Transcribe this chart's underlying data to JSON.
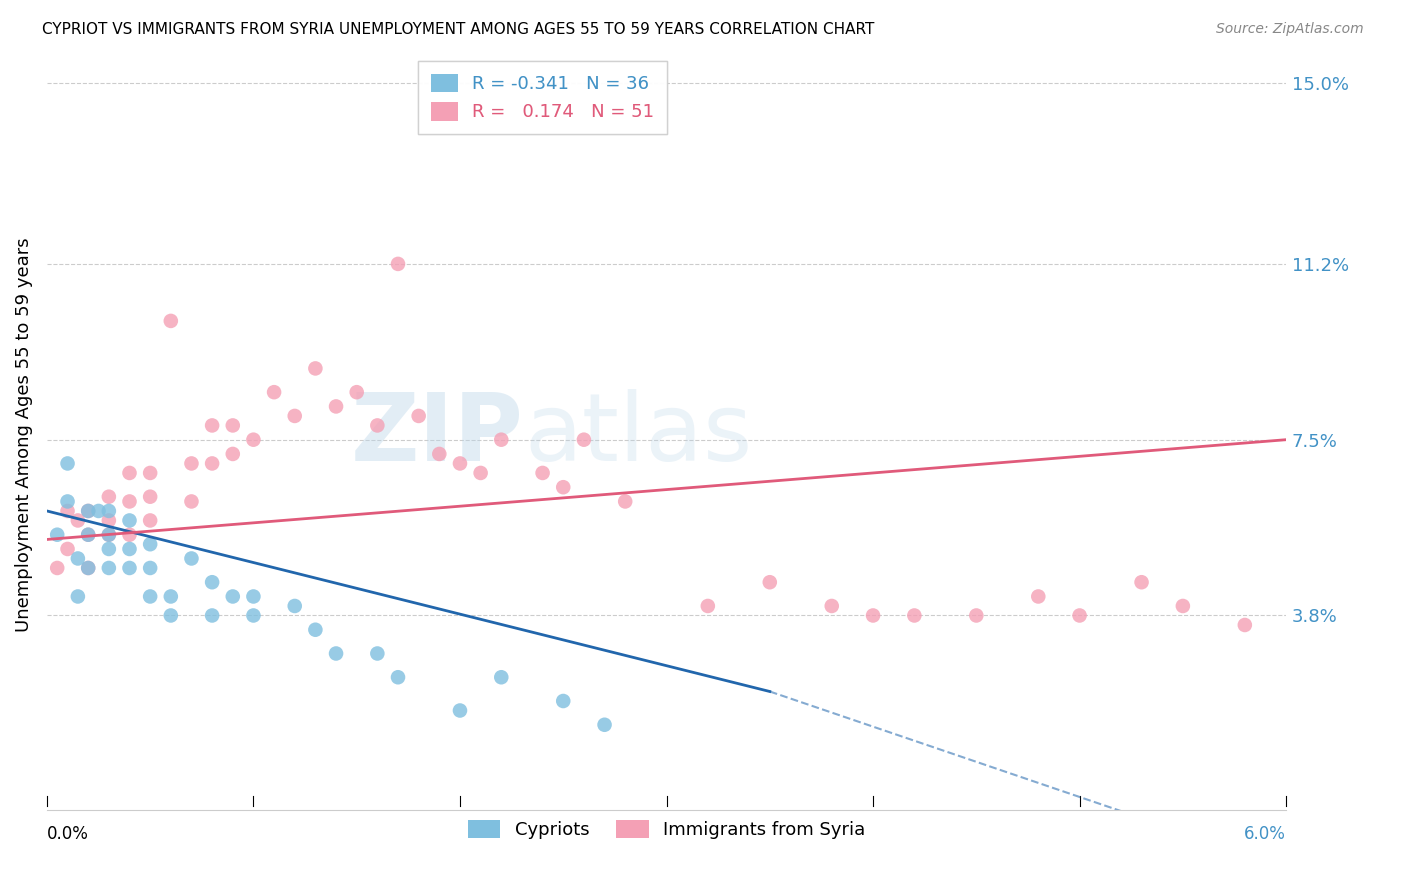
{
  "title": "CYPRIOT VS IMMIGRANTS FROM SYRIA UNEMPLOYMENT AMONG AGES 55 TO 59 YEARS CORRELATION CHART",
  "source": "Source: ZipAtlas.com",
  "ylabel": "Unemployment Among Ages 55 to 59 years",
  "legend_label1": "Cypriots",
  "legend_label2": "Immigrants from Syria",
  "R1": -0.341,
  "N1": 36,
  "R2": 0.174,
  "N2": 51,
  "color_blue": "#7fbfdf",
  "color_pink": "#f4a0b5",
  "color_blue_line": "#2166ac",
  "color_pink_line": "#e05a7a",
  "color_blue_text": "#4292c6",
  "watermark_zip": "ZIP",
  "watermark_atlas": "atlas",
  "xmin": 0.0,
  "xmax": 0.06,
  "ymin": 0.0,
  "ymax": 0.155,
  "ytick_labels": [
    "15.0%",
    "11.2%",
    "7.5%",
    "3.8%"
  ],
  "ytick_values": [
    0.15,
    0.112,
    0.075,
    0.038
  ],
  "cypriots_x": [
    0.0005,
    0.001,
    0.001,
    0.0015,
    0.0015,
    0.002,
    0.002,
    0.002,
    0.0025,
    0.003,
    0.003,
    0.003,
    0.003,
    0.004,
    0.004,
    0.004,
    0.005,
    0.005,
    0.005,
    0.006,
    0.006,
    0.007,
    0.008,
    0.008,
    0.009,
    0.01,
    0.01,
    0.012,
    0.013,
    0.014,
    0.016,
    0.017,
    0.02,
    0.022,
    0.025,
    0.027
  ],
  "cypriots_y": [
    0.055,
    0.062,
    0.07,
    0.05,
    0.042,
    0.048,
    0.055,
    0.06,
    0.06,
    0.048,
    0.052,
    0.055,
    0.06,
    0.048,
    0.052,
    0.058,
    0.042,
    0.048,
    0.053,
    0.038,
    0.042,
    0.05,
    0.038,
    0.045,
    0.042,
    0.038,
    0.042,
    0.04,
    0.035,
    0.03,
    0.03,
    0.025,
    0.018,
    0.025,
    0.02,
    0.015
  ],
  "syria_x": [
    0.0005,
    0.001,
    0.001,
    0.0015,
    0.002,
    0.002,
    0.002,
    0.003,
    0.003,
    0.003,
    0.004,
    0.004,
    0.004,
    0.005,
    0.005,
    0.005,
    0.006,
    0.007,
    0.007,
    0.008,
    0.008,
    0.009,
    0.009,
    0.01,
    0.011,
    0.012,
    0.013,
    0.014,
    0.015,
    0.016,
    0.017,
    0.018,
    0.019,
    0.02,
    0.021,
    0.022,
    0.024,
    0.025,
    0.026,
    0.028,
    0.032,
    0.035,
    0.038,
    0.04,
    0.042,
    0.045,
    0.048,
    0.05,
    0.053,
    0.055,
    0.058
  ],
  "syria_y": [
    0.048,
    0.052,
    0.06,
    0.058,
    0.048,
    0.055,
    0.06,
    0.055,
    0.058,
    0.063,
    0.055,
    0.062,
    0.068,
    0.058,
    0.063,
    0.068,
    0.1,
    0.062,
    0.07,
    0.07,
    0.078,
    0.072,
    0.078,
    0.075,
    0.085,
    0.08,
    0.09,
    0.082,
    0.085,
    0.078,
    0.112,
    0.08,
    0.072,
    0.07,
    0.068,
    0.075,
    0.068,
    0.065,
    0.075,
    0.062,
    0.04,
    0.045,
    0.04,
    0.038,
    0.038,
    0.038,
    0.042,
    0.038,
    0.045,
    0.04,
    0.036
  ]
}
